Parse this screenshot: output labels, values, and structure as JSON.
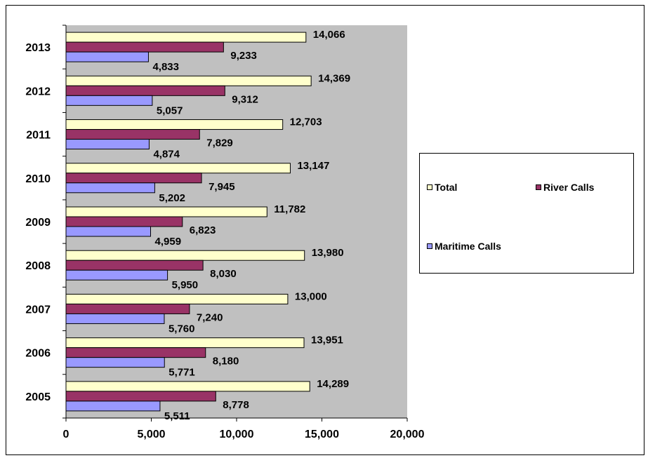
{
  "chart_data": {
    "type": "bar",
    "orientation": "horizontal",
    "categories": [
      "2005",
      "2006",
      "2007",
      "2008",
      "2009",
      "2010",
      "2011",
      "2012",
      "2013"
    ],
    "series": [
      {
        "name": "Total",
        "color": "#FFFFCC",
        "values": [
          14289,
          13951,
          13000,
          13980,
          11782,
          13147,
          12703,
          14369,
          14066
        ],
        "labels": [
          "14,289",
          "13,951",
          "13,000",
          "13,980",
          "11,782",
          "13,147",
          "12,703",
          "14,369",
          "14,066"
        ]
      },
      {
        "name": "River Calls",
        "color": "#993366",
        "values": [
          8778,
          8180,
          7240,
          8030,
          6823,
          7945,
          7829,
          9312,
          9233
        ],
        "labels": [
          "8,778",
          "8,180",
          "7,240",
          "8,030",
          "6,823",
          "7,945",
          "7,829",
          "9,312",
          "9,233"
        ]
      },
      {
        "name": "Maritime Calls",
        "color": "#9999FF",
        "values": [
          5511,
          5771,
          5760,
          5950,
          4959,
          5202,
          4874,
          5057,
          4833
        ],
        "labels": [
          "5,511",
          "5,771",
          "5,760",
          "5,950",
          "4,959",
          "5,202",
          "4,874",
          "5,057",
          "4,833"
        ]
      }
    ],
    "xlim": [
      0,
      20000
    ],
    "xticks": [
      0,
      5000,
      10000,
      15000,
      20000
    ],
    "xtick_labels": [
      "0",
      "5,000",
      "10,000",
      "15,000",
      "20,000"
    ],
    "plot_background": "#C0C0C0",
    "grid": false,
    "legend_position": "right",
    "title": "",
    "xlabel": "",
    "ylabel": ""
  },
  "legend": {
    "items": [
      {
        "label": "Total",
        "color": "#FFFFCC"
      },
      {
        "label": "River Calls",
        "color": "#993366"
      },
      {
        "label": "Maritime Calls",
        "color": "#9999FF"
      }
    ]
  }
}
